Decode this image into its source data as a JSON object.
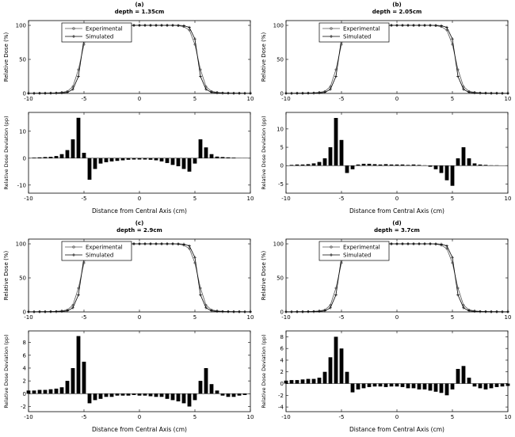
{
  "chart_data": {
    "type": "multi",
    "description": "Four panels (a-d); each has a line chart of relative dose profiles (Experimental vs Simulated) and a bar chart of relative dose deviation versus distance from central axis.",
    "xlim": [
      -10,
      10
    ],
    "xticks": [
      -10,
      -5,
      0,
      5,
      10
    ],
    "xlabel": "Distance from Central Axis (cm)",
    "x": [
      -10,
      -9.5,
      -9,
      -8.5,
      -8,
      -7.5,
      -7,
      -6.5,
      -6,
      -5.5,
      -5,
      -4.5,
      -4,
      -3.5,
      -3,
      -2.5,
      -2,
      -1.5,
      -1,
      -0.5,
      0,
      0.5,
      1,
      1.5,
      2,
      2.5,
      3,
      3.5,
      4,
      4.5,
      5,
      5.5,
      6,
      6.5,
      7,
      7.5,
      8,
      8.5,
      9,
      9.5,
      10
    ],
    "panels": [
      {
        "id": "a",
        "label": "(a)",
        "depth": "depth = 1.35cm",
        "profile": {
          "type": "line",
          "ylabel": "Relative Dose (%)",
          "ylim": [
            0,
            107
          ],
          "yticks": [
            0,
            50,
            100
          ],
          "series": [
            {
              "name": "Experimental",
              "marker": "circle",
              "color": "#555555",
              "values": [
                0.2,
                0.2,
                0.3,
                0.4,
                0.5,
                0.8,
                1.5,
                3,
                10,
                35,
                72,
                93,
                98,
                99.5,
                100,
                100,
                100,
                100,
                100,
                100,
                100,
                100,
                100,
                100,
                100,
                100,
                100,
                99.5,
                98,
                93,
                72,
                35,
                10,
                3,
                1.5,
                0.8,
                0.5,
                0.4,
                0.3,
                0.2,
                0.2
              ]
            },
            {
              "name": "Simulated",
              "marker": "plus",
              "color": "#000000",
              "values": [
                0.1,
                0.1,
                0.2,
                0.2,
                0.3,
                0.4,
                0.8,
                1.5,
                6,
                25,
                80,
                97,
                99.5,
                100,
                100,
                100,
                100,
                100,
                100,
                100,
                100,
                100,
                100,
                100,
                100,
                100,
                100,
                100,
                99.5,
                97,
                80,
                25,
                6,
                1.5,
                0.8,
                0.4,
                0.3,
                0.2,
                0.2,
                0.1,
                0.1
              ]
            }
          ]
        },
        "deviation": {
          "type": "bar",
          "ylabel": "Relative Dose Deviation (pp)",
          "ylim": [
            -13,
            17
          ],
          "yticks": [
            -10,
            0,
            10
          ],
          "values": [
            0,
            0.2,
            0.3,
            0.4,
            0.5,
            0.8,
            1.5,
            3,
            7,
            15,
            2,
            -8,
            -4,
            -2,
            -1.5,
            -1.2,
            -1,
            -0.8,
            -0.6,
            -0.5,
            -0.5,
            -0.5,
            -0.6,
            -0.8,
            -1.2,
            -1.8,
            -2.5,
            -3,
            -4,
            -5,
            -2,
            7,
            4,
            1.5,
            0.6,
            0.4,
            0.3,
            0.2,
            0.1,
            0.1,
            0
          ]
        }
      },
      {
        "id": "b",
        "label": "(b)",
        "depth": "depth = 2.05cm",
        "profile": {
          "type": "line",
          "ylabel": "Relative Dose (%)",
          "ylim": [
            0,
            107
          ],
          "yticks": [
            0,
            50,
            100
          ],
          "series": [
            {
              "name": "Experimental",
              "marker": "circle",
              "color": "#555555",
              "values": [
                0.2,
                0.2,
                0.3,
                0.4,
                0.5,
                0.8,
                1.5,
                3,
                10,
                35,
                72,
                93,
                98,
                99.5,
                100,
                100,
                100,
                100,
                100,
                100,
                100,
                100,
                100,
                100,
                100,
                100,
                100,
                99.5,
                98,
                93,
                72,
                35,
                10,
                3,
                1.5,
                0.8,
                0.5,
                0.4,
                0.3,
                0.2,
                0.2
              ]
            },
            {
              "name": "Simulated",
              "marker": "plus",
              "color": "#000000",
              "values": [
                0.1,
                0.1,
                0.2,
                0.2,
                0.3,
                0.4,
                0.8,
                1.5,
                6,
                25,
                80,
                97,
                99.5,
                100,
                100,
                100,
                100,
                100,
                100,
                100,
                100,
                100,
                100,
                100,
                100,
                100,
                100,
                100,
                99.5,
                97,
                80,
                25,
                6,
                1.5,
                0.8,
                0.4,
                0.3,
                0.2,
                0.2,
                0.1,
                0.1
              ]
            }
          ]
        },
        "deviation": {
          "type": "bar",
          "ylabel": "Relative Dose Deviation (pp)",
          "ylim": [
            -7.5,
            14.5
          ],
          "yticks": [
            -5,
            0,
            5,
            10
          ],
          "values": [
            0,
            0.2,
            0.3,
            0.3,
            0.4,
            0.6,
            1,
            2,
            5,
            13,
            7,
            -2,
            -1,
            0.3,
            0.5,
            0.5,
            0.4,
            0.3,
            0.4,
            0.3,
            0.3,
            0.3,
            0.2,
            0.3,
            0.2,
            0.1,
            -0.3,
            -1,
            -2,
            -4,
            -5.5,
            2,
            5,
            2,
            0.6,
            0.3,
            0.2,
            0.1,
            0.1,
            0,
            0
          ]
        }
      },
      {
        "id": "c",
        "label": "(c)",
        "depth": "depth = 2.9cm",
        "profile": {
          "type": "line",
          "ylabel": "Relative Dose (%)",
          "ylim": [
            0,
            107
          ],
          "yticks": [
            0,
            50,
            100
          ],
          "series": [
            {
              "name": "Experimental",
              "marker": "circle",
              "color": "#555555",
              "values": [
                0.2,
                0.2,
                0.3,
                0.4,
                0.5,
                0.8,
                1.5,
                3,
                10,
                35,
                72,
                93,
                98,
                99.5,
                100,
                100,
                100,
                100,
                100,
                100,
                100,
                100,
                100,
                100,
                100,
                100,
                100,
                99.5,
                98,
                93,
                72,
                35,
                10,
                3,
                1.5,
                0.8,
                0.5,
                0.4,
                0.3,
                0.2,
                0.2
              ]
            },
            {
              "name": "Simulated",
              "marker": "plus",
              "color": "#000000",
              "values": [
                0.1,
                0.1,
                0.2,
                0.2,
                0.3,
                0.4,
                0.8,
                1.5,
                6,
                25,
                80,
                97,
                99.5,
                100,
                100,
                100,
                100,
                100,
                100,
                100,
                100,
                100,
                100,
                100,
                100,
                100,
                100,
                100,
                99.5,
                97,
                80,
                25,
                6,
                1.5,
                0.8,
                0.4,
                0.3,
                0.2,
                0.2,
                0.1,
                0.1
              ]
            }
          ]
        },
        "deviation": {
          "type": "bar",
          "ylabel": "Relative Dose Deviation (pp)",
          "ylim": [
            -2.8,
            9.8
          ],
          "yticks": [
            -2,
            0,
            2,
            4,
            6,
            8
          ],
          "values": [
            0.5,
            0.5,
            0.6,
            0.6,
            0.7,
            0.8,
            1,
            2,
            4,
            9,
            5,
            -1.5,
            -1,
            -0.8,
            -0.5,
            -0.5,
            -0.3,
            -0.3,
            -0.3,
            -0.2,
            -0.3,
            -0.3,
            -0.4,
            -0.5,
            -0.5,
            -0.8,
            -1,
            -1.2,
            -1.5,
            -2,
            -1,
            2,
            4,
            1.5,
            0.5,
            -0.3,
            -0.5,
            -0.5,
            -0.3,
            -0.2,
            0
          ]
        }
      },
      {
        "id": "d",
        "label": "(d)",
        "depth": "depth = 3.7cm",
        "profile": {
          "type": "line",
          "ylabel": "Relative Dose (%)",
          "ylim": [
            0,
            107
          ],
          "yticks": [
            0,
            50,
            100
          ],
          "series": [
            {
              "name": "Experimental",
              "marker": "circle",
              "color": "#555555",
              "values": [
                0.2,
                0.2,
                0.3,
                0.4,
                0.5,
                0.8,
                1.5,
                3,
                10,
                35,
                72,
                93,
                98,
                99.5,
                100,
                100,
                100,
                100,
                100,
                100,
                100,
                100,
                100,
                100,
                100,
                100,
                100,
                99.5,
                98,
                93,
                72,
                35,
                10,
                3,
                1.5,
                0.8,
                0.5,
                0.4,
                0.3,
                0.2,
                0.2
              ]
            },
            {
              "name": "Simulated",
              "marker": "plus",
              "color": "#000000",
              "values": [
                0.1,
                0.1,
                0.2,
                0.2,
                0.3,
                0.4,
                0.8,
                1.5,
                6,
                25,
                80,
                97,
                99.5,
                100,
                100,
                100,
                100,
                100,
                100,
                100,
                100,
                100,
                100,
                100,
                100,
                100,
                100,
                100,
                99.5,
                97,
                80,
                25,
                6,
                1.5,
                0.8,
                0.4,
                0.3,
                0.2,
                0.2,
                0.1,
                0.1
              ]
            }
          ]
        },
        "deviation": {
          "type": "bar",
          "ylabel": "Relative Dose Deviation (pp)",
          "ylim": [
            -4.8,
            9
          ],
          "yticks": [
            -4,
            -2,
            0,
            2,
            4,
            6,
            8
          ],
          "values": [
            0.5,
            0.6,
            0.6,
            0.7,
            0.8,
            0.8,
            1,
            2,
            4.5,
            8,
            6,
            2,
            -1.5,
            -1,
            -0.8,
            -0.6,
            -0.5,
            -0.5,
            -0.6,
            -0.5,
            -0.5,
            -0.6,
            -0.8,
            -0.8,
            -1,
            -1,
            -1.2,
            -1.4,
            -1.6,
            -2,
            -1,
            2.5,
            3,
            1,
            -0.5,
            -0.8,
            -1,
            -0.8,
            -0.6,
            -0.5,
            -0.4
          ]
        }
      }
    ]
  }
}
